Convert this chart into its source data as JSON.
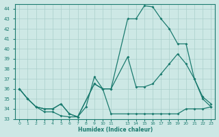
{
  "xlabel": "Humidex (Indice chaleur)",
  "background_color": "#cde8e5",
  "grid_color": "#aacfcb",
  "line_color": "#1a7a6e",
  "ylim": [
    33,
    44.5
  ],
  "xlim": [
    -0.5,
    23.5
  ],
  "yticks": [
    33,
    34,
    35,
    36,
    37,
    38,
    39,
    40,
    41,
    42,
    43,
    44
  ],
  "xtick_vals": [
    0,
    1,
    2,
    3,
    4,
    5,
    6,
    7,
    8,
    9,
    10,
    11,
    13,
    14,
    15,
    16,
    17,
    18,
    19,
    20,
    21,
    22,
    23
  ],
  "xtick_labels": [
    "0",
    "1",
    "2",
    "3",
    "4",
    "5",
    "6",
    "7",
    "8",
    "9",
    "10",
    "11",
    "13",
    "14",
    "15",
    "16",
    "17",
    "18",
    "19",
    "20",
    "21",
    "22",
    "23"
  ],
  "line1_x": [
    0,
    1,
    2,
    3,
    4,
    5,
    6,
    7,
    8,
    9,
    10,
    11,
    13,
    14,
    15,
    16,
    17,
    18,
    19,
    20,
    21,
    22,
    23
  ],
  "line1_y": [
    36.0,
    35.0,
    34.2,
    33.7,
    33.7,
    33.3,
    33.2,
    33.2,
    34.2,
    37.2,
    36.0,
    36.0,
    43.0,
    43.0,
    44.3,
    44.2,
    43.0,
    42.0,
    40.5,
    40.5,
    37.0,
    35.2,
    34.5
  ],
  "line2_x": [
    0,
    1,
    2,
    3,
    4,
    5,
    6,
    7,
    9,
    10,
    11,
    13,
    14,
    15,
    16,
    17,
    18,
    19,
    20,
    21,
    22,
    23
  ],
  "line2_y": [
    36.0,
    35.0,
    34.2,
    34.0,
    34.0,
    34.5,
    33.5,
    33.2,
    36.5,
    36.0,
    36.0,
    39.2,
    36.2,
    36.2,
    36.5,
    37.5,
    38.5,
    39.5,
    38.5,
    37.0,
    35.0,
    34.2
  ],
  "line3_x": [
    0,
    1,
    2,
    3,
    4,
    5,
    6,
    7,
    9,
    10,
    11,
    13,
    14,
    15,
    16,
    17,
    18,
    19,
    20,
    21,
    22,
    23
  ],
  "line3_y": [
    36.0,
    35.0,
    34.2,
    34.0,
    34.0,
    34.5,
    33.5,
    33.2,
    36.5,
    36.0,
    33.5,
    33.5,
    33.5,
    33.5,
    33.5,
    33.5,
    33.5,
    33.5,
    34.0,
    34.0,
    34.0,
    34.2
  ]
}
